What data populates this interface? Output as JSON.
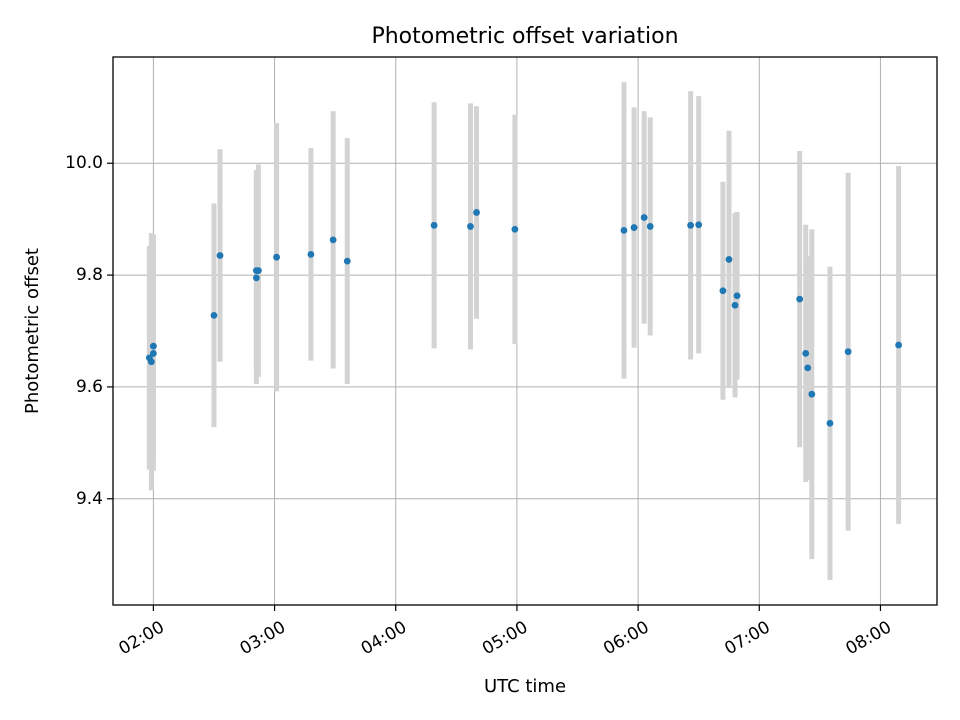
{
  "chart_data": {
    "type": "scatter",
    "title": "Photometric offset variation",
    "xlabel": "UTC time",
    "ylabel": "Photometric offset",
    "x_axis_type": "time",
    "xlim": [
      "01:40",
      "08:28"
    ],
    "ylim": [
      9.21,
      10.19
    ],
    "x_ticks": [
      "02:00",
      "03:00",
      "04:00",
      "05:00",
      "06:00",
      "07:00",
      "08:00"
    ],
    "y_ticks": [
      9.4,
      9.6,
      9.8,
      10.0
    ],
    "grid": true,
    "legend": "none",
    "colors": {
      "point": "#1f77b4",
      "errorbar": "#d3d3d3",
      "grid": "#b0b0b0"
    },
    "points": [
      {
        "x": "01:58",
        "y": 9.652,
        "err": 0.2
      },
      {
        "x": "01:59",
        "y": 9.645,
        "err": 0.23
      },
      {
        "x": "02:00",
        "y": 9.673,
        "err": 0.2
      },
      {
        "x": "02:00",
        "y": 9.66,
        "err": 0.21
      },
      {
        "x": "02:30",
        "y": 9.728,
        "err": 0.2
      },
      {
        "x": "02:33",
        "y": 9.835,
        "err": 0.19
      },
      {
        "x": "02:51",
        "y": 9.808,
        "err": 0.18
      },
      {
        "x": "02:51",
        "y": 9.795,
        "err": 0.19
      },
      {
        "x": "02:52",
        "y": 9.808,
        "err": 0.19
      },
      {
        "x": "03:01",
        "y": 9.832,
        "err": 0.24
      },
      {
        "x": "03:18",
        "y": 9.837,
        "err": 0.19
      },
      {
        "x": "03:29",
        "y": 9.863,
        "err": 0.23
      },
      {
        "x": "03:36",
        "y": 9.825,
        "err": 0.22
      },
      {
        "x": "04:19",
        "y": 9.889,
        "err": 0.22
      },
      {
        "x": "04:37",
        "y": 9.887,
        "err": 0.22
      },
      {
        "x": "04:40",
        "y": 9.912,
        "err": 0.19
      },
      {
        "x": "04:59",
        "y": 9.882,
        "err": 0.205
      },
      {
        "x": "05:53",
        "y": 9.88,
        "err": 0.265
      },
      {
        "x": "05:58",
        "y": 9.885,
        "err": 0.215
      },
      {
        "x": "06:03",
        "y": 9.903,
        "err": 0.19
      },
      {
        "x": "06:06",
        "y": 9.887,
        "err": 0.195
      },
      {
        "x": "06:26",
        "y": 9.889,
        "err": 0.24
      },
      {
        "x": "06:30",
        "y": 9.89,
        "err": 0.23
      },
      {
        "x": "06:42",
        "y": 9.772,
        "err": 0.195
      },
      {
        "x": "06:45",
        "y": 9.828,
        "err": 0.23
      },
      {
        "x": "06:48",
        "y": 9.746,
        "err": 0.165
      },
      {
        "x": "06:49",
        "y": 9.763,
        "err": 0.15
      },
      {
        "x": "07:20",
        "y": 9.757,
        "err": 0.265
      },
      {
        "x": "07:23",
        "y": 9.66,
        "err": 0.23
      },
      {
        "x": "07:24",
        "y": 9.634,
        "err": 0.2
      },
      {
        "x": "07:26",
        "y": 9.587,
        "err": 0.295
      },
      {
        "x": "07:35",
        "y": 9.535,
        "err": 0.28
      },
      {
        "x": "07:44",
        "y": 9.663,
        "err": 0.32
      },
      {
        "x": "08:09",
        "y": 9.675,
        "err": 0.32
      }
    ]
  }
}
